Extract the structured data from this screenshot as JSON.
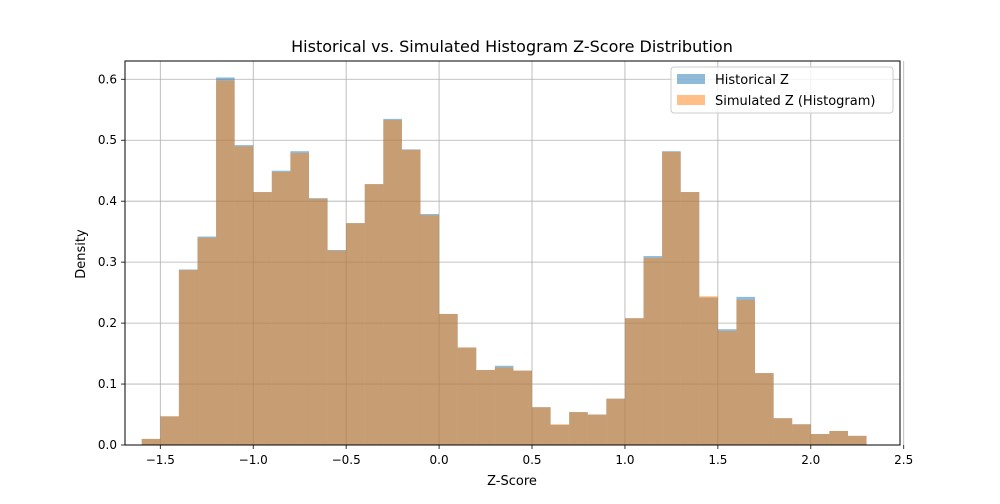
{
  "chart_data": {
    "type": "histogram",
    "title": "Historical vs. Simulated Histogram Z-Score Distribution",
    "xlabel": "Z-Score",
    "ylabel": "Density",
    "xlim": [
      -1.69,
      2.48
    ],
    "ylim": [
      0,
      0.63
    ],
    "xticks": [
      -1.5,
      -1.0,
      -0.5,
      0.0,
      0.5,
      1.0,
      1.5,
      2.0,
      2.5
    ],
    "xtick_labels": [
      "−1.5",
      "−1.0",
      "−0.5",
      "0.0",
      "0.5",
      "1.0",
      "1.5",
      "2.0",
      "2.5"
    ],
    "yticks": [
      0.0,
      0.1,
      0.2,
      0.3,
      0.4,
      0.5,
      0.6
    ],
    "ytick_labels": [
      "0.0",
      "0.1",
      "0.2",
      "0.3",
      "0.4",
      "0.5",
      "0.6"
    ],
    "grid": true,
    "legend_position": "top-right",
    "bin_start": -1.6,
    "bin_width": 0.1,
    "series": [
      {
        "name": "Historical Z",
        "color": "#1f77b4",
        "opacity": 0.5,
        "values": [
          0.01,
          0.047,
          0.288,
          0.342,
          0.603,
          0.492,
          0.415,
          0.45,
          0.482,
          0.405,
          0.32,
          0.364,
          0.428,
          0.535,
          0.485,
          0.379,
          0.215,
          0.16,
          0.123,
          0.13,
          0.122,
          0.062,
          0.033,
          0.054,
          0.05,
          0.076,
          0.208,
          0.31,
          0.482,
          0.415,
          0.242,
          0.19,
          0.243,
          0.118,
          0.044,
          0.034,
          0.018,
          0.023,
          0.015
        ]
      },
      {
        "name": "Simulated Z (Histogram)",
        "color": "#ff7f0e",
        "opacity": 0.5,
        "values": [
          0.01,
          0.047,
          0.287,
          0.34,
          0.598,
          0.49,
          0.415,
          0.448,
          0.479,
          0.404,
          0.319,
          0.364,
          0.428,
          0.533,
          0.484,
          0.377,
          0.215,
          0.16,
          0.123,
          0.127,
          0.122,
          0.062,
          0.034,
          0.054,
          0.05,
          0.076,
          0.208,
          0.307,
          0.481,
          0.415,
          0.244,
          0.187,
          0.238,
          0.118,
          0.044,
          0.034,
          0.018,
          0.023,
          0.015
        ]
      }
    ]
  }
}
